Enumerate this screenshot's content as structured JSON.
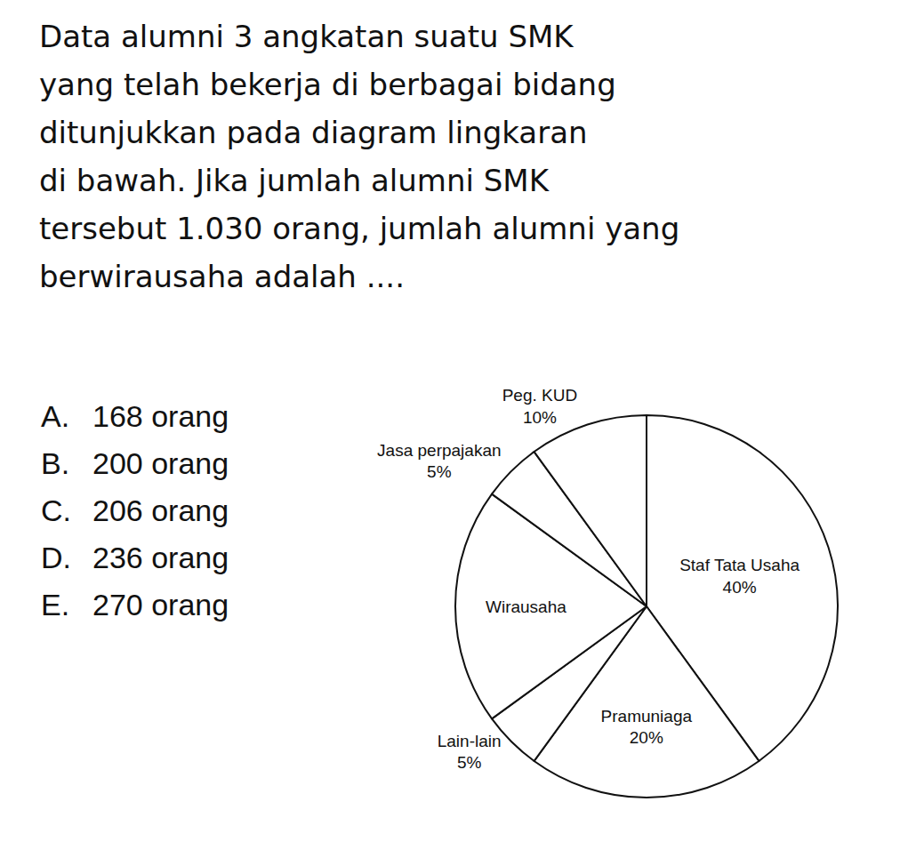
{
  "question": [
    "Data alumni 3 angkatan suatu SMK",
    "yang telah bekerja di berbagai bidang",
    "ditunjukkan pada diagram lingkaran",
    "di bawah. Jika jumlah alumni SMK",
    "tersebut 1.030 orang, jumlah alumni yang",
    "berwirausaha adalah ...."
  ],
  "options": [
    {
      "label": "A.",
      "text": "168 orang"
    },
    {
      "label": "B.",
      "text": "200 orang"
    },
    {
      "label": "C.",
      "text": "206 orang"
    },
    {
      "label": "D.",
      "text": "236 orang"
    },
    {
      "label": "E.",
      "text": "270 orang"
    }
  ],
  "chart_data": {
    "type": "pie",
    "categories": [
      "Staf Tata Usaha",
      "Pramuniaga",
      "Lain-lain",
      "Wirausaha",
      "Jasa perpajakan",
      "Peg. KUD"
    ],
    "values": [
      40,
      20,
      5,
      20,
      5,
      10
    ],
    "value_labels": [
      "40%",
      "20%",
      "5%",
      null,
      "5%",
      "10%"
    ],
    "color": "#ffffff",
    "data_labels": true
  }
}
